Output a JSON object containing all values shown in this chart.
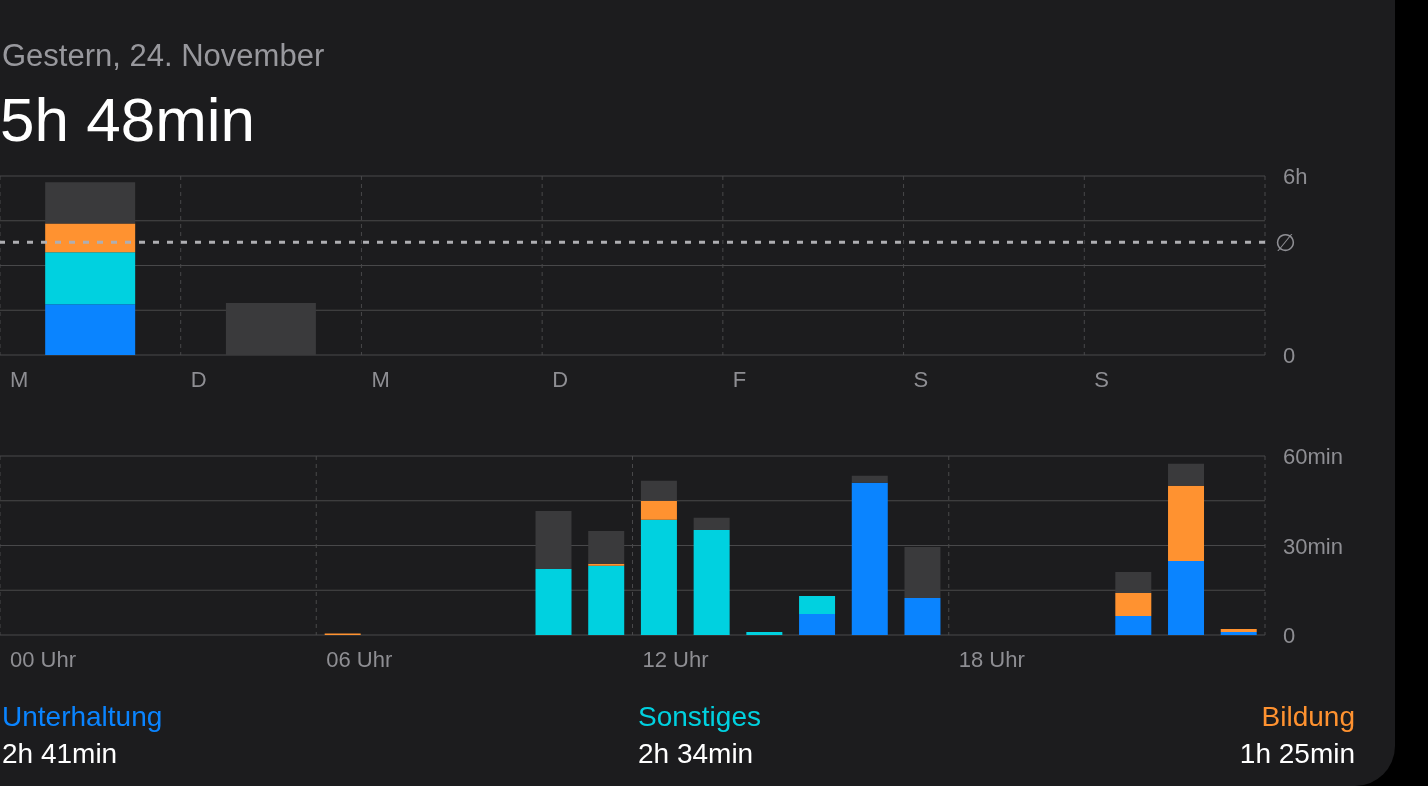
{
  "chart_data": [
    {
      "type": "bar",
      "subtitle": "Gestern, 24. November",
      "title": "5h 48min",
      "stacked": true,
      "categories": [
        "M",
        "D",
        "M",
        "D",
        "F",
        "S",
        "S"
      ],
      "series": [
        {
          "color": "#0a84ff",
          "values": [
            1.7,
            0,
            0,
            0,
            0,
            0,
            0
          ]
        },
        {
          "color": "#00d1e0",
          "values": [
            1.74,
            0,
            0,
            0,
            0,
            0,
            0
          ]
        },
        {
          "color": "#ff9230",
          "values": [
            0.97,
            0,
            0,
            0,
            0,
            0,
            0
          ]
        },
        {
          "color": "#3a3a3c",
          "values": [
            1.38,
            1.74,
            0,
            0,
            0,
            0,
            0
          ]
        }
      ],
      "ylim": [
        0,
        6
      ],
      "yticks": [
        0,
        {
          "value": 1.5,
          "label": null
        },
        {
          "value": 3,
          "label": null
        },
        {
          "value": 4.5,
          "label": null
        },
        {
          "value": 6,
          "label": "6h"
        }
      ],
      "ref_lines": [
        {
          "axis": "y",
          "value": 3.78,
          "label": "∅",
          "line_style": "dashed",
          "color": "#aeaeb2"
        }
      ],
      "grid": true
    },
    {
      "type": "bar",
      "stacked": true,
      "categories": [
        "00 Uhr",
        null,
        null,
        null,
        null,
        null,
        "06 Uhr",
        null,
        null,
        null,
        null,
        null,
        "12 Uhr",
        null,
        null,
        null,
        null,
        null,
        "18 Uhr",
        null,
        null,
        null,
        null,
        null
      ],
      "series": [
        {
          "name": "Unterhaltung",
          "color": "#0a84ff",
          "values": [
            0,
            0,
            0,
            0,
            0,
            0,
            0,
            0,
            0,
            0,
            0,
            0,
            0,
            0,
            0,
            7,
            51,
            12.4,
            0,
            0,
            0,
            6.4,
            24.8,
            1
          ]
        },
        {
          "name": "Sonstiges",
          "color": "#00d1e0",
          "values": [
            0,
            0,
            0,
            0,
            0,
            0,
            0,
            0,
            0,
            0,
            22.1,
            23.2,
            38.6,
            35.2,
            1,
            6.1,
            0,
            0,
            0,
            0,
            0,
            0,
            0,
            0
          ]
        },
        {
          "name": "Bildung",
          "color": "#ff9230",
          "values": [
            0,
            0,
            0,
            0,
            0,
            0,
            0.5,
            0,
            0,
            0,
            0,
            0.7,
            6.4,
            0,
            0,
            0,
            0,
            0,
            0,
            0,
            0,
            7.7,
            25.2,
            1
          ]
        },
        {
          "color": "#3a3a3c",
          "values": [
            0,
            0,
            0,
            0,
            0,
            0,
            0,
            0,
            0,
            0,
            19.5,
            11,
            6.7,
            4.1,
            0,
            0,
            2.4,
            17.1,
            0,
            0,
            0,
            7,
            7.4,
            0
          ]
        }
      ],
      "ylim": [
        0,
        60
      ],
      "yticks": [
        0,
        {
          "value": 15,
          "label": null
        },
        {
          "value": 30,
          "label": "30min"
        },
        {
          "value": 45,
          "label": null
        },
        {
          "value": 60,
          "label": "60min"
        }
      ],
      "grid": true,
      "legend": "bottom",
      "annotations": [
        "2h 41min",
        "2h 34min",
        "1h 25min"
      ]
    }
  ]
}
